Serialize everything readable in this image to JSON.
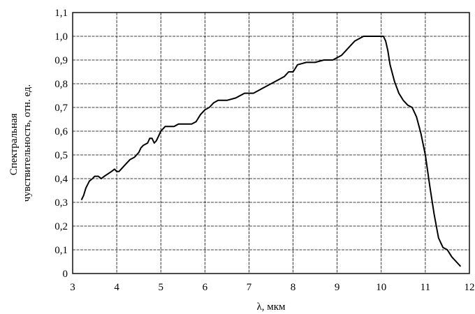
{
  "chart_data": {
    "type": "line",
    "title": "",
    "xlabel": "λ, мкм",
    "ylabel_lines": [
      "Спектральная",
      "чувствительность, отн. ед."
    ],
    "xlim": [
      3,
      12
    ],
    "ylim": [
      0,
      1.1
    ],
    "grid": true,
    "x_ticks": [
      3,
      4,
      5,
      6,
      7,
      8,
      9,
      10,
      11,
      12
    ],
    "x_tick_labels": [
      "3",
      "4",
      "5",
      "6",
      "7",
      "8",
      "9",
      "10",
      "11",
      "12"
    ],
    "y_ticks": [
      0,
      0.1,
      0.2,
      0.3,
      0.4,
      0.5,
      0.6,
      0.7,
      0.8,
      0.9,
      1.0,
      1.1
    ],
    "y_tick_labels": [
      "0",
      "0,1",
      "0,2",
      "0,3",
      "0,4",
      "0,5",
      "0,6",
      "0,7",
      "0,8",
      "0,9",
      "1,0",
      "1,1"
    ],
    "series": [
      {
        "x": [
          3.2,
          3.25,
          3.3,
          3.38,
          3.45,
          3.5,
          3.58,
          3.65,
          3.72,
          3.8,
          3.88,
          3.95,
          4.0,
          4.05,
          4.1,
          4.2,
          4.3,
          4.4,
          4.5,
          4.55,
          4.6,
          4.7,
          4.75,
          4.8,
          4.85,
          4.9,
          4.95,
          5.0,
          5.05,
          5.1,
          5.2,
          5.3,
          5.4,
          5.5,
          5.6,
          5.7,
          5.8,
          5.9,
          6.0,
          6.1,
          6.2,
          6.3,
          6.5,
          6.7,
          6.9,
          7.0,
          7.1,
          7.3,
          7.5,
          7.7,
          7.8,
          7.9,
          8.0,
          8.1,
          8.3,
          8.5,
          8.7,
          8.9,
          9.0,
          9.1,
          9.2,
          9.3,
          9.4,
          9.5,
          9.6,
          9.7,
          9.8,
          9.9,
          10.0,
          10.05,
          10.1,
          10.15,
          10.2,
          10.3,
          10.4,
          10.5,
          10.6,
          10.7,
          10.8,
          10.9,
          11.0,
          11.1,
          11.2,
          11.3,
          11.4,
          11.5,
          11.6,
          11.7,
          11.8
        ],
        "values": [
          0.31,
          0.33,
          0.36,
          0.39,
          0.4,
          0.41,
          0.41,
          0.4,
          0.41,
          0.42,
          0.43,
          0.44,
          0.43,
          0.43,
          0.44,
          0.46,
          0.48,
          0.49,
          0.51,
          0.53,
          0.54,
          0.55,
          0.57,
          0.57,
          0.55,
          0.56,
          0.58,
          0.6,
          0.61,
          0.62,
          0.62,
          0.62,
          0.63,
          0.63,
          0.63,
          0.63,
          0.64,
          0.67,
          0.69,
          0.7,
          0.72,
          0.73,
          0.73,
          0.74,
          0.76,
          0.76,
          0.76,
          0.78,
          0.8,
          0.82,
          0.83,
          0.85,
          0.85,
          0.88,
          0.89,
          0.89,
          0.9,
          0.9,
          0.91,
          0.92,
          0.94,
          0.96,
          0.98,
          0.99,
          1.0,
          1.0,
          1.0,
          1.0,
          1.0,
          1.0,
          0.98,
          0.94,
          0.88,
          0.81,
          0.76,
          0.73,
          0.71,
          0.7,
          0.66,
          0.59,
          0.5,
          0.37,
          0.25,
          0.15,
          0.11,
          0.1,
          0.07,
          0.05,
          0.03
        ]
      }
    ]
  }
}
